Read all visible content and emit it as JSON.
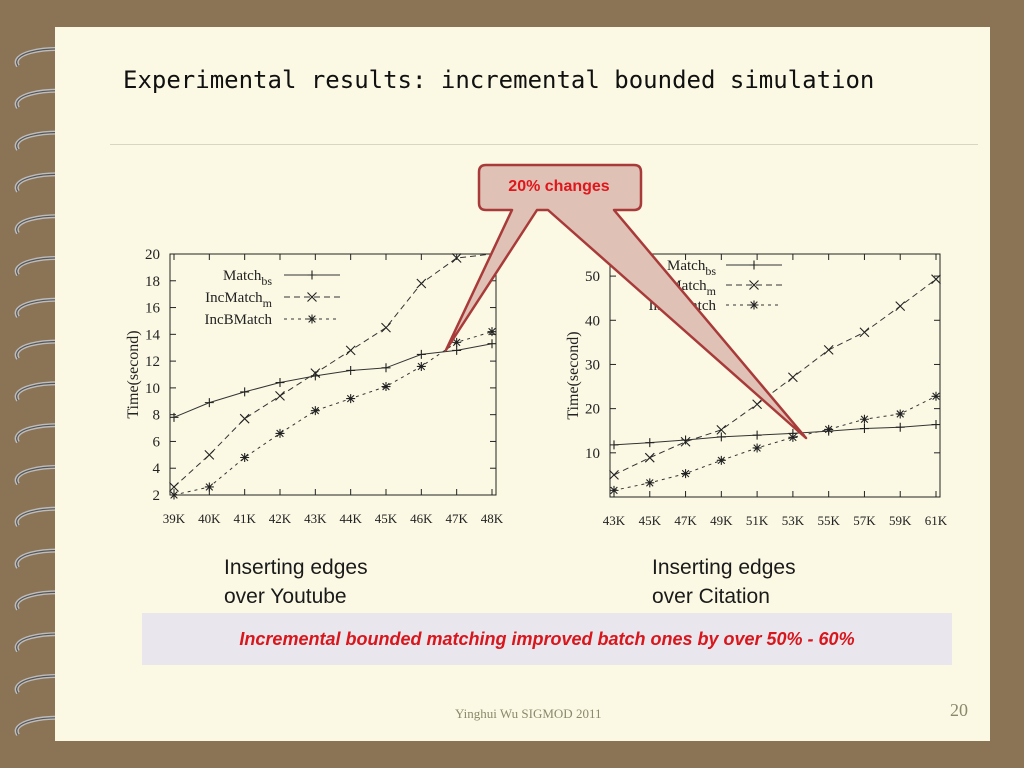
{
  "slide": {
    "title": "Experimental results: incremental bounded simulation",
    "callout": "20% changes",
    "banner": "Incremental bounded matching improved batch ones by over 50% - 60%",
    "footer": "Yinghui Wu SIGMOD 2011",
    "page_number": "20",
    "colors": {
      "background": "#8b7355",
      "page": "#fbf9e4",
      "callout_fill": "#dfc1b5",
      "callout_border": "#a83a3a",
      "accent_red": "#d9161c",
      "banner_bg": "#e9e7ed"
    }
  },
  "chart_data": [
    {
      "type": "line",
      "caption": [
        "Inserting edges",
        "over Youtube"
      ],
      "ylabel": "Time(second)",
      "xlabel": "",
      "categories": [
        "39K",
        "40K",
        "41K",
        "42K",
        "43K",
        "44K",
        "45K",
        "46K",
        "47K",
        "48K"
      ],
      "ylim": [
        2,
        20
      ],
      "yticks": [
        2,
        4,
        6,
        8,
        10,
        12,
        14,
        16,
        18,
        20
      ],
      "legend_position": "top-left",
      "series": [
        {
          "name": "Match",
          "subscript": "bs",
          "marker": "plus",
          "dash": "solid",
          "values": [
            7.8,
            8.9,
            9.7,
            10.4,
            10.9,
            11.3,
            11.5,
            12.5,
            12.8,
            13.3
          ]
        },
        {
          "name": "IncMatch",
          "subscript": "m",
          "marker": "x",
          "dash": "long",
          "values": [
            2.6,
            5.0,
            7.7,
            9.4,
            11.1,
            12.8,
            14.5,
            17.8,
            19.7,
            20.8
          ]
        },
        {
          "name": "IncBMatch",
          "subscript": "",
          "marker": "star",
          "dash": "short",
          "values": [
            1.8,
            2.6,
            4.8,
            6.6,
            8.3,
            9.2,
            10.1,
            11.6,
            13.4,
            14.2
          ]
        }
      ]
    },
    {
      "type": "line",
      "caption": [
        "Inserting edges",
        "over Citation"
      ],
      "ylabel": "Time(second)",
      "xlabel": "",
      "categories": [
        "43K",
        "45K",
        "47K",
        "49K",
        "51K",
        "53K",
        "55K",
        "57K",
        "59K",
        "61K"
      ],
      "ylim": [
        0,
        55
      ],
      "yticks": [
        10,
        20,
        30,
        40,
        50
      ],
      "legend_position": "top-left",
      "series": [
        {
          "name": "Match",
          "subscript": "bs",
          "marker": "plus",
          "dash": "solid",
          "values": [
            11.8,
            12.3,
            12.9,
            13.6,
            14.0,
            14.4,
            14.9,
            15.5,
            15.8,
            16.4
          ]
        },
        {
          "name": "IncMatch",
          "subscript": "m",
          "marker": "x",
          "dash": "long",
          "values": [
            5.0,
            8.9,
            12.5,
            15.2,
            21.0,
            27.1,
            33.3,
            37.3,
            43.2,
            49.3
          ]
        },
        {
          "name": "IncBMatch",
          "subscript": "",
          "marker": "star",
          "dash": "short",
          "values": [
            1.5,
            3.2,
            5.3,
            8.3,
            11.1,
            13.5,
            15.3,
            17.6,
            18.8,
            22.8
          ]
        }
      ]
    }
  ]
}
